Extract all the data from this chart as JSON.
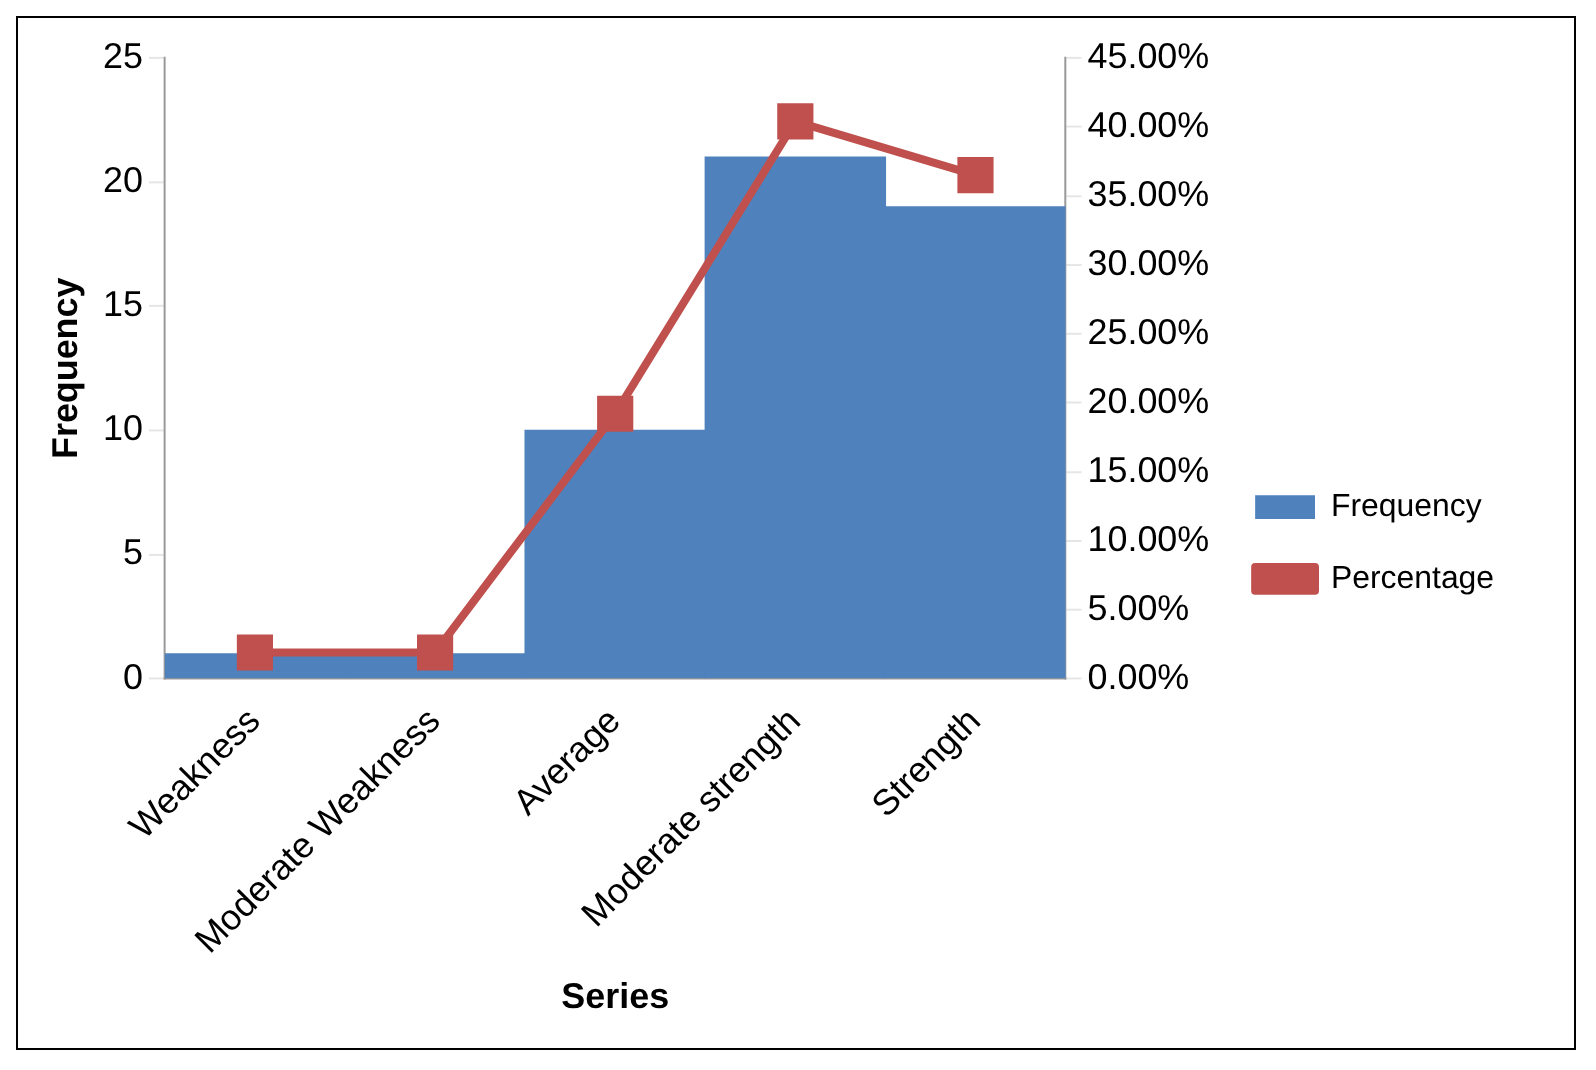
{
  "chart_data": {
    "type": "bar",
    "xlabel": "Series",
    "ylabel": "Frequency",
    "categories": [
      "Weakness",
      "Moderate Weakness",
      "Average",
      "Moderate strength",
      "Strength"
    ],
    "series": [
      {
        "name": "Frequency",
        "color": "#4f81bd",
        "values": [
          1,
          1,
          10,
          21,
          19
        ]
      },
      {
        "name": "Percentage",
        "type": "line",
        "axis": "y2",
        "color": "#c0504d",
        "values": [
          1.9,
          1.9,
          19.2,
          40.4,
          36.5
        ]
      }
    ],
    "ylim": [
      0,
      25
    ],
    "yticks": [
      0,
      5,
      10,
      15,
      20,
      25
    ],
    "y2lim": [
      0,
      45
    ],
    "y2ticks": [
      {
        "value": 0,
        "label": "0.00%"
      },
      {
        "value": 5,
        "label": "5.00%"
      },
      {
        "value": 10,
        "label": "10.00%"
      },
      {
        "value": 15,
        "label": "15.00%"
      },
      {
        "value": 20,
        "label": "20.00%"
      },
      {
        "value": 25,
        "label": "25.00%"
      },
      {
        "value": 30,
        "label": "30.00%"
      },
      {
        "value": 35,
        "label": "35.00%"
      },
      {
        "value": 40,
        "label": "40.00%"
      },
      {
        "value": 45,
        "label": "45.00%"
      }
    ],
    "marker": "square",
    "line_style": "solid",
    "grid": false,
    "legend": "right"
  }
}
